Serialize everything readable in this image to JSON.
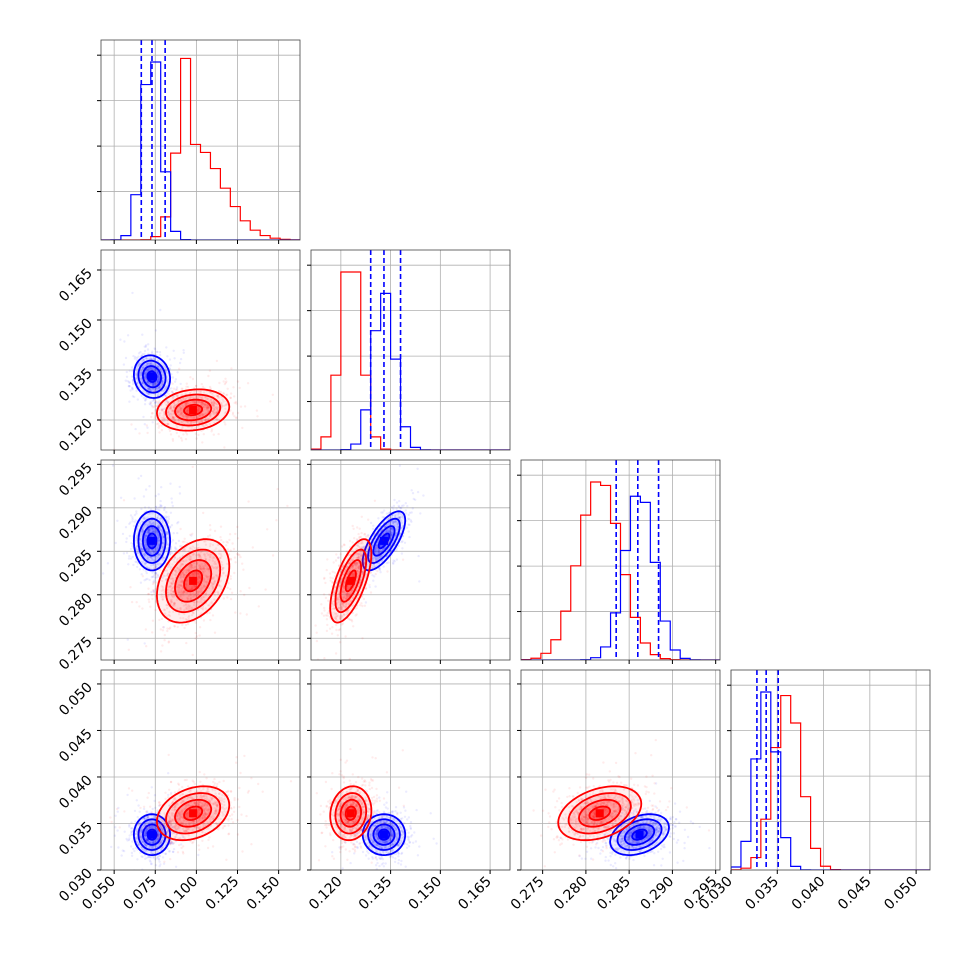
{
  "chart_data": {
    "type": "corner",
    "grid": true,
    "colors": {
      "blue": "#0000ff",
      "red": "#ff0000",
      "grid": "#b0b0b0"
    },
    "parameters": [
      {
        "lim": [
          0.042,
          0.163
        ],
        "ticks": [
          "0.050",
          "0.075",
          "0.100",
          "0.125",
          "0.150"
        ],
        "tick_values": [
          0.05,
          0.075,
          0.1,
          0.125,
          0.15
        ]
      },
      {
        "lim": [
          0.111,
          0.171
        ],
        "ticks": [
          "0.120",
          "0.135",
          "0.150",
          "0.165"
        ],
        "tick_values": [
          0.12,
          0.135,
          0.15,
          0.165
        ]
      },
      {
        "lim": [
          0.2725,
          0.2955
        ],
        "ticks": [
          "0.275",
          "0.280",
          "0.285",
          "0.290",
          "0.295"
        ],
        "tick_values": [
          0.275,
          0.28,
          0.285,
          0.29,
          0.295
        ]
      },
      {
        "lim": [
          0.03,
          0.0515
        ],
        "ticks": [
          "0.030",
          "0.035",
          "0.040",
          "0.045",
          "0.050"
        ],
        "tick_values": [
          0.03,
          0.035,
          0.04,
          0.045,
          0.05
        ]
      }
    ],
    "series": [
      {
        "color": "#0000ff",
        "mean": [
          0.073,
          0.133,
          0.2862,
          0.0338
        ],
        "sigma": [
          0.0055,
          0.0032,
          0.0017,
          0.0011
        ],
        "correlations": {
          "1-0": -0.1,
          "2-0": 0.0,
          "2-1": 0.7,
          "3-0": 0.0,
          "3-1": 0.0,
          "3-2": 0.35
        },
        "quantiles": [
          [
            0.0665,
            0.073,
            0.081
          ],
          [
            0.129,
            0.133,
            0.138
          ],
          [
            0.2835,
            0.286,
            0.2884
          ],
          [
            0.0328,
            0.0338,
            0.0351
          ]
        ]
      },
      {
        "color": "#ff0000",
        "mean": [
          0.098,
          0.123,
          0.2816,
          0.0361
        ],
        "sigma": [
          0.011,
          0.0031,
          0.0024,
          0.00145
        ],
        "correlations": {
          "1-0": 0.15,
          "2-0": 0.35,
          "2-1": 0.65,
          "3-0": 0.3,
          "3-1": 0.1,
          "3-2": 0.35
        },
        "quantiles": null
      }
    ],
    "histogram_peaks": [
      {
        "blue": 1.0,
        "red": 1.02
      },
      {
        "blue": 0.88,
        "red": 1.0
      },
      {
        "blue": 0.92,
        "red": 1.0
      },
      {
        "blue": 1.0,
        "red": 0.98
      }
    ]
  }
}
